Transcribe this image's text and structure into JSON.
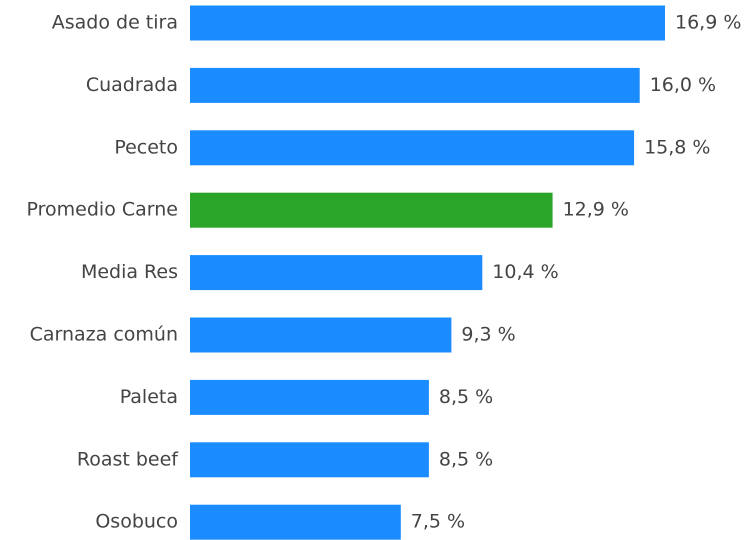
{
  "chart_data": {
    "type": "barh",
    "categories": [
      "Asado de tira",
      "Cuadrada",
      "Peceto",
      "Promedio Carne",
      "Media Res",
      "Carnaza común",
      "Paleta",
      "Roast beef",
      "Osobuco"
    ],
    "values": [
      16.9,
      16.0,
      15.8,
      12.9,
      10.4,
      9.3,
      8.5,
      8.5,
      7.5
    ],
    "value_labels": [
      "16,9 %",
      "16,0 %",
      "15,8 %",
      "12,9 %",
      "10,4 %",
      "9,3 %",
      "8,5 %",
      "8,5 %",
      "7,5 %"
    ],
    "colors": [
      "#1a8cff",
      "#1a8cff",
      "#1a8cff",
      "#2aa52a",
      "#1a8cff",
      "#1a8cff",
      "#1a8cff",
      "#1a8cff",
      "#1a8cff"
    ]
  }
}
